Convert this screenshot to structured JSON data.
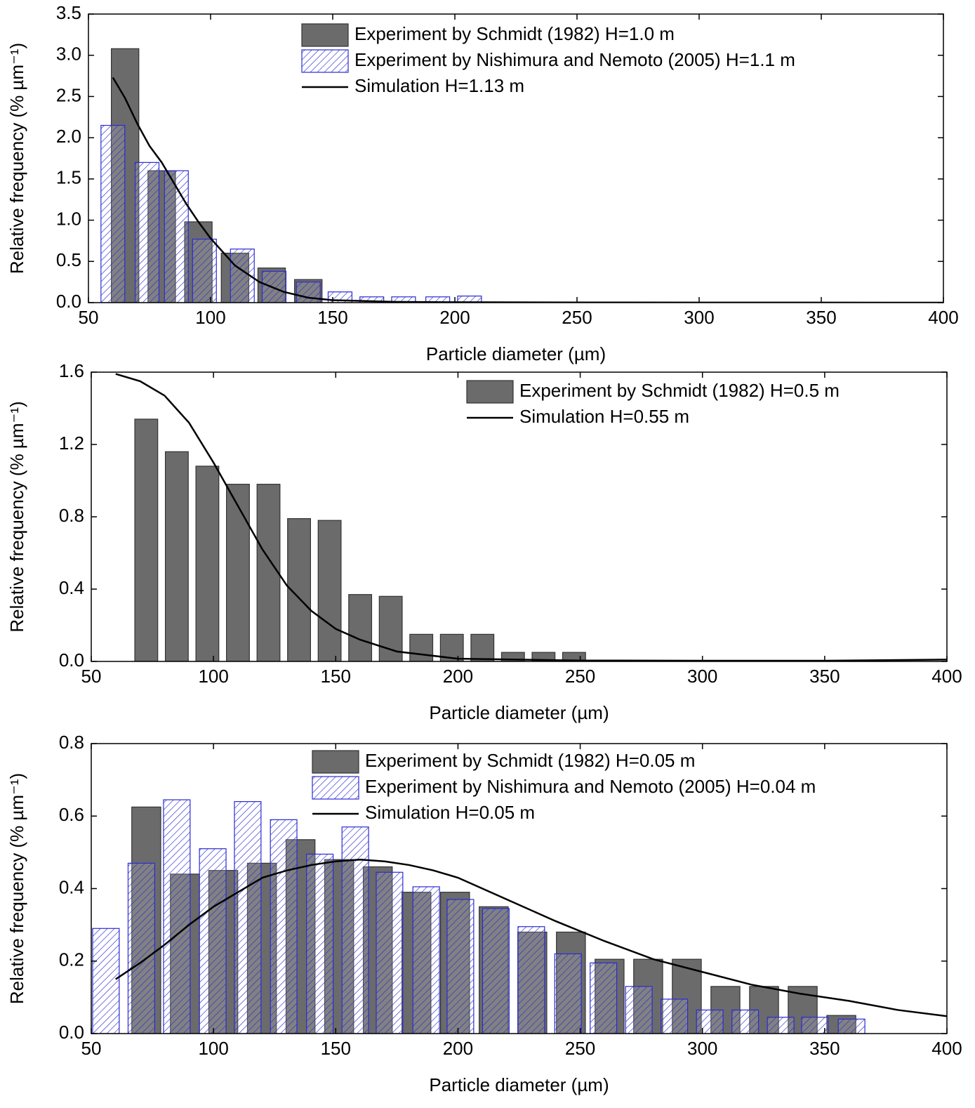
{
  "chart_data": [
    {
      "type": "combo",
      "xlabel": "Particle diameter (µm)",
      "ylabel": "Relative frequency (% µm⁻¹)",
      "xlim": [
        50,
        400
      ],
      "xticks": [
        50,
        100,
        150,
        200,
        250,
        300,
        350,
        400
      ],
      "ylim": [
        0,
        3.5
      ],
      "yticks": [
        {
          "value": 0,
          "label": "0.0"
        },
        0.5,
        {
          "value": 1,
          "label": "1.0"
        },
        1.5,
        {
          "value": 2,
          "label": "2.0"
        },
        2.5,
        {
          "value": 3,
          "label": "3.0"
        },
        3.5
      ],
      "series": [
        {
          "name": "Experiment by Schmidt (1982) H=1.0 m",
          "type": "bar",
          "color": "#6b6b6b",
          "x": [
            65,
            80,
            95,
            110,
            125,
            140
          ],
          "values": [
            3.08,
            1.6,
            0.98,
            0.6,
            0.42,
            0.28
          ]
        },
        {
          "name": "Experiment by Nishimura and Nemoto (2005) H=1.1 m",
          "type": "bar",
          "hatch": true,
          "color": "#2b2bd6",
          "x": [
            60,
            74,
            86,
            97.5,
            113,
            126,
            140,
            153,
            166,
            179,
            193,
            206
          ],
          "values": [
            2.15,
            1.7,
            1.6,
            0.77,
            0.65,
            0.38,
            0.25,
            0.13,
            0.07,
            0.07,
            0.07,
            0.08
          ]
        },
        {
          "name": "Simulation H=1.13 m",
          "type": "line",
          "color": "#000000",
          "x": [
            60,
            65,
            70,
            75,
            80,
            85,
            90,
            95,
            100,
            110,
            120,
            130,
            140,
            150,
            175,
            200,
            250,
            300,
            400
          ],
          "values": [
            2.73,
            2.48,
            2.17,
            1.9,
            1.7,
            1.45,
            1.2,
            0.98,
            0.78,
            0.45,
            0.25,
            0.13,
            0.06,
            0.03,
            0.01,
            0.005,
            0.002,
            0.001,
            0
          ]
        }
      ]
    },
    {
      "type": "combo",
      "xlabel": "Particle diameter (µm)",
      "ylabel": "Relative frequency (% µm⁻¹)",
      "xlim": [
        50,
        400
      ],
      "xticks": [
        50,
        100,
        150,
        200,
        250,
        300,
        350,
        400
      ],
      "ylim": [
        0,
        1.6
      ],
      "yticks": [
        {
          "value": 0,
          "label": "0.0"
        },
        0.4,
        0.8,
        1.2,
        1.6
      ],
      "series": [
        {
          "name": "Experiment by Schmidt (1982) H=0.5 m",
          "type": "bar",
          "color": "#6b6b6b",
          "x": [
            72.5,
            85,
            97.5,
            110,
            122.5,
            135,
            147.5,
            160,
            172.5,
            185,
            197.5,
            210,
            222.5,
            235,
            247.5
          ],
          "values": [
            1.34,
            1.16,
            1.08,
            0.98,
            0.98,
            0.79,
            0.78,
            0.37,
            0.36,
            0.15,
            0.15,
            0.15,
            0.05,
            0.05,
            0.05
          ]
        },
        {
          "name": "Simulation H=0.55 m",
          "type": "line",
          "color": "#000000",
          "x": [
            60,
            70,
            80,
            90,
            100,
            110,
            120,
            130,
            140,
            150,
            160,
            175,
            200,
            250,
            300,
            350,
            400
          ],
          "values": [
            1.59,
            1.55,
            1.47,
            1.32,
            1.1,
            0.86,
            0.62,
            0.42,
            0.28,
            0.18,
            0.12,
            0.055,
            0.015,
            0.005,
            0.004,
            0.004,
            0.01
          ]
        }
      ]
    },
    {
      "type": "combo",
      "xlabel": "Particle diameter (µm)",
      "ylabel": "Relative frequency (% µm⁻¹)",
      "xlim": [
        50,
        400
      ],
      "xticks": [
        50,
        100,
        150,
        200,
        250,
        300,
        350,
        400
      ],
      "ylim": [
        0,
        0.8
      ],
      "yticks": [
        {
          "value": 0,
          "label": "0.0"
        },
        0.2,
        0.4,
        0.6,
        0.8
      ],
      "series": [
        {
          "name": "Experiment by Schmidt (1982) H=0.05 m",
          "type": "bar",
          "color": "#6b6b6b",
          "x": [
            72.5,
            88.3,
            104,
            119.8,
            135.6,
            151.4,
            167.2,
            183,
            198.8,
            214.6,
            230.4,
            246.2,
            262,
            277.8,
            293.6,
            309.4,
            325.2,
            341,
            356.8
          ],
          "values": [
            0.625,
            0.44,
            0.45,
            0.47,
            0.535,
            0.48,
            0.46,
            0.39,
            0.39,
            0.35,
            0.28,
            0.28,
            0.205,
            0.205,
            0.205,
            0.13,
            0.13,
            0.13,
            0.05
          ]
        },
        {
          "name": "Experiment by Nishimura and Nemoto (2005) H=0.04 m",
          "type": "bar",
          "hatch": true,
          "color": "#2b2bd6",
          "x": [
            56,
            70.5,
            85,
            99.7,
            114,
            128.7,
            143.5,
            158,
            172,
            187,
            201,
            215.5,
            230,
            245,
            259.5,
            274,
            288.5,
            303,
            317.5,
            332,
            346,
            361
          ],
          "values": [
            0.29,
            0.47,
            0.645,
            0.51,
            0.64,
            0.59,
            0.495,
            0.57,
            0.445,
            0.405,
            0.37,
            0.345,
            0.295,
            0.22,
            0.195,
            0.13,
            0.095,
            0.065,
            0.065,
            0.045,
            0.045,
            0.04
          ]
        },
        {
          "name": "Simulation H=0.05 m",
          "type": "line",
          "color": "#000000",
          "x": [
            60,
            70,
            80,
            90,
            100,
            110,
            120,
            130,
            140,
            150,
            160,
            170,
            180,
            190,
            200,
            220,
            240,
            260,
            280,
            300,
            320,
            340,
            360,
            380,
            400
          ],
          "values": [
            0.15,
            0.195,
            0.245,
            0.3,
            0.35,
            0.39,
            0.43,
            0.45,
            0.465,
            0.475,
            0.48,
            0.475,
            0.465,
            0.45,
            0.43,
            0.37,
            0.31,
            0.255,
            0.205,
            0.17,
            0.135,
            0.11,
            0.09,
            0.065,
            0.048
          ]
        }
      ]
    }
  ]
}
